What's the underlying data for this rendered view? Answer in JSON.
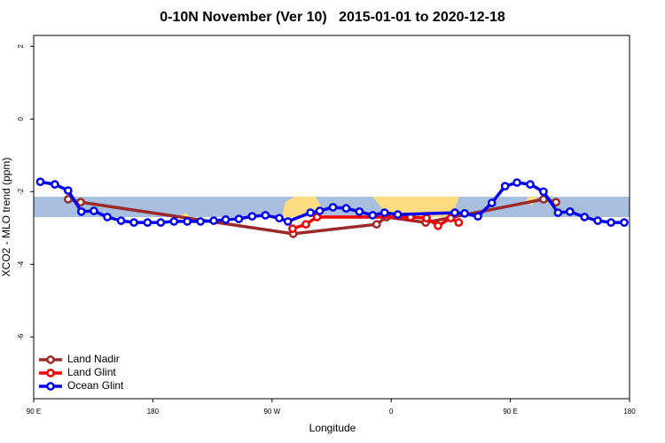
{
  "chart_data": {
    "type": "line",
    "title": "0-10N November (Ver 10)   2015-01-01 to 2020-12-18",
    "xlabel": "Longitude",
    "ylabel": "XCO2 - MLO trend (ppm)",
    "xlim": [
      90,
      540
    ],
    "ylim": [
      -7.7,
      2.3
    ],
    "xticks": [
      {
        "value": 90,
        "label": "90 E"
      },
      180,
      {
        "value": 270,
        "label": "90 W"
      },
      {
        "value": 360,
        "label": "0"
      },
      {
        "value": 450,
        "label": "90 E"
      },
      {
        "value": 540,
        "label": "180"
      }
    ],
    "yticks": [
      2,
      0,
      -2,
      -4,
      -6
    ],
    "legend": "bottom-left",
    "series": [
      {
        "name": "Land Nadir",
        "color": "#9b2a2a",
        "x": [
          116,
          125.5,
          286,
          349,
          356.5,
          386,
          475,
          484.5
        ],
        "values": [
          -2.21,
          -2.29,
          -3.16,
          -2.9,
          -2.7,
          -2.85,
          -2.21,
          -2.29
        ]
      },
      {
        "name": "Land Glint",
        "color": "#ee0000",
        "x": [
          285.5,
          295.6,
          304,
          374.6,
          386.7,
          395.4,
          405,
          411
        ],
        "values": [
          -3.02,
          -2.9,
          -2.7,
          -2.7,
          -2.73,
          -2.94,
          -2.73,
          -2.85
        ]
      },
      {
        "name": "Ocean Glint",
        "color": "#0000ee",
        "x": [
          95,
          106,
          116,
          126,
          135.5,
          145.6,
          156,
          165.7,
          176,
          186,
          196,
          206,
          216,
          226,
          235,
          245,
          255,
          265,
          275.5,
          282,
          299,
          306,
          316,
          326,
          336,
          346,
          355,
          365,
          408,
          415.5,
          425.5,
          436,
          446,
          455,
          465,
          475,
          486,
          495,
          506,
          516,
          526,
          536
        ],
        "values": [
          -1.73,
          -1.8,
          -1.97,
          -2.55,
          -2.53,
          -2.7,
          -2.8,
          -2.85,
          -2.85,
          -2.85,
          -2.82,
          -2.82,
          -2.82,
          -2.8,
          -2.77,
          -2.75,
          -2.68,
          -2.65,
          -2.73,
          -2.82,
          -2.58,
          -2.53,
          -2.43,
          -2.46,
          -2.55,
          -2.65,
          -2.58,
          -2.63,
          -2.58,
          -2.6,
          -2.68,
          -2.31,
          -1.85,
          -1.75,
          -1.8,
          -2.0,
          -2.58,
          -2.55,
          -2.7,
          -2.8,
          -2.85,
          -2.85
        ]
      }
    ]
  }
}
